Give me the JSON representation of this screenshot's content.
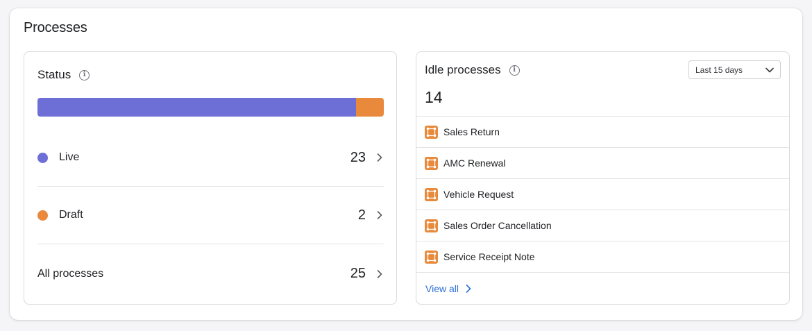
{
  "panel": {
    "title": "Processes"
  },
  "status": {
    "title": "Status",
    "bar": [
      {
        "name": "Live",
        "fraction": 0.92,
        "color": "#6e6fd6"
      },
      {
        "name": "Draft",
        "fraction": 0.08,
        "color": "#e8893b"
      }
    ],
    "rows": [
      {
        "label": "Live",
        "count": "23",
        "color": "#6e6fd6"
      },
      {
        "label": "Draft",
        "count": "2",
        "color": "#e8893b"
      },
      {
        "label": "All processes",
        "count": "25"
      }
    ]
  },
  "idle": {
    "title": "Idle processes",
    "count": "14",
    "range": {
      "selected": "Last 15 days"
    },
    "items": [
      {
        "label": "Sales Return"
      },
      {
        "label": "AMC Renewal"
      },
      {
        "label": "Vehicle Request"
      },
      {
        "label": "Sales Order Cancellation"
      },
      {
        "label": "Service Receipt Note"
      }
    ],
    "view_all_label": "View all"
  },
  "icons": {
    "info": "info-icon",
    "chevron_right": "chevron-right-icon",
    "chevron_down": "chevron-down-icon",
    "process": "process-icon"
  }
}
